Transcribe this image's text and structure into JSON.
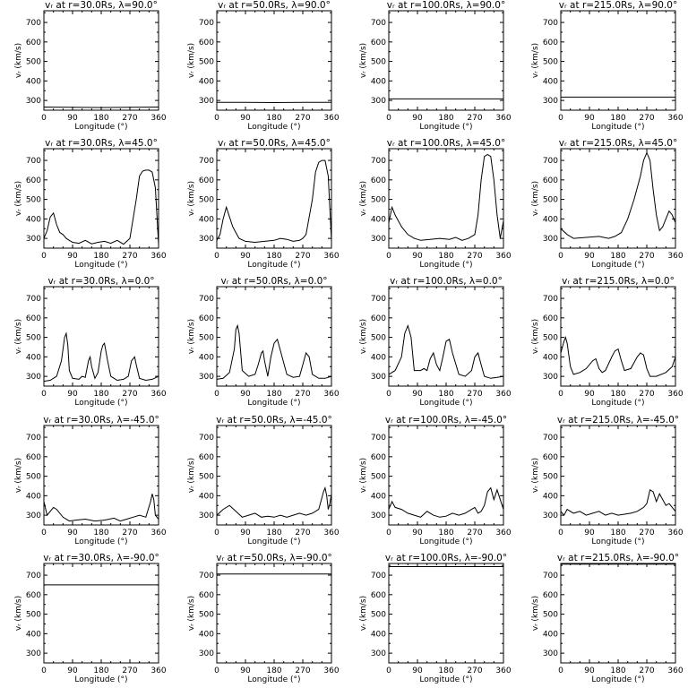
{
  "figure": {
    "xlabel": "Longitude (°)",
    "ylabel": "vᵣ (km/s)",
    "xticks": [
      0,
      90,
      180,
      270,
      360
    ],
    "yticks": [
      300,
      400,
      500,
      600,
      700
    ]
  },
  "chart_data": [
    {
      "type": "line",
      "title": "vᵣ at r=30.0Rs, λ=90.0°",
      "xlabel": "Longitude (°)",
      "ylabel": "vᵣ (km/s)",
      "xlim": [
        0,
        360
      ],
      "ylim": [
        250,
        760
      ],
      "x": [
        0,
        90,
        180,
        270,
        360
      ],
      "y": [
        266,
        265,
        264,
        265,
        266
      ]
    },
    {
      "type": "line",
      "title": "vᵣ at r=50.0Rs, λ=90.0°",
      "xlabel": "Longitude (°)",
      "ylabel": "vᵣ (km/s)",
      "xlim": [
        0,
        360
      ],
      "ylim": [
        250,
        760
      ],
      "x": [
        0,
        90,
        180,
        270,
        360
      ],
      "y": [
        290,
        290,
        289,
        290,
        290
      ]
    },
    {
      "type": "line",
      "title": "vᵣ at r=100.0Rs, λ=90.0°",
      "xlabel": "Longitude (°)",
      "ylabel": "vᵣ (km/s)",
      "xlim": [
        0,
        360
      ],
      "ylim": [
        250,
        760
      ],
      "x": [
        0,
        360
      ],
      "y": [
        308,
        308
      ]
    },
    {
      "type": "line",
      "title": "vᵣ at r=215.0Rs, λ=90.0°",
      "xlabel": "Longitude (°)",
      "ylabel": "vᵣ (km/s)",
      "xlim": [
        0,
        360
      ],
      "ylim": [
        250,
        760
      ],
      "x": [
        0,
        360
      ],
      "y": [
        317,
        317
      ]
    },
    {
      "type": "line",
      "title": "vᵣ at r=30.0Rs, λ=45.0°",
      "xlabel": "Longitude (°)",
      "ylabel": "vᵣ (km/s)",
      "xlim": [
        0,
        360
      ],
      "ylim": [
        250,
        760
      ],
      "x": [
        0,
        10,
        20,
        30,
        40,
        50,
        60,
        70,
        80,
        90,
        110,
        130,
        150,
        170,
        190,
        210,
        230,
        250,
        270,
        290,
        300,
        310,
        320,
        330,
        340,
        350,
        360
      ],
      "y": [
        300,
        340,
        410,
        430,
        370,
        330,
        320,
        300,
        290,
        280,
        275,
        290,
        272,
        280,
        285,
        275,
        290,
        270,
        300,
        500,
        620,
        645,
        650,
        650,
        640,
        560,
        270
      ]
    },
    {
      "type": "line",
      "title": "vᵣ at r=50.0Rs, λ=45.0°",
      "xlabel": "Longitude (°)",
      "ylabel": "vᵣ (km/s)",
      "xlim": [
        0,
        360
      ],
      "ylim": [
        250,
        760
      ],
      "x": [
        0,
        10,
        20,
        30,
        40,
        50,
        60,
        70,
        90,
        120,
        150,
        180,
        200,
        220,
        240,
        260,
        270,
        280,
        300,
        310,
        320,
        330,
        340,
        350,
        360
      ],
      "y": [
        290,
        320,
        400,
        460,
        410,
        360,
        330,
        300,
        285,
        280,
        285,
        290,
        300,
        295,
        285,
        290,
        300,
        320,
        500,
        640,
        690,
        700,
        700,
        620,
        290
      ]
    },
    {
      "type": "line",
      "title": "vᵣ at r=100.0Rs, λ=45.0°",
      "xlabel": "Longitude (°)",
      "ylabel": "vᵣ (km/s)",
      "xlim": [
        0,
        360
      ],
      "ylim": [
        250,
        760
      ],
      "x": [
        0,
        10,
        20,
        40,
        60,
        80,
        100,
        130,
        160,
        190,
        210,
        230,
        250,
        270,
        280,
        290,
        300,
        310,
        320,
        330,
        340,
        350,
        360
      ],
      "y": [
        380,
        460,
        420,
        360,
        320,
        300,
        290,
        295,
        300,
        295,
        305,
        290,
        300,
        320,
        420,
        600,
        720,
        730,
        720,
        600,
        420,
        300,
        390
      ]
    },
    {
      "type": "line",
      "title": "vᵣ at r=215.0Rs, λ=45.0°",
      "xlabel": "Longitude (°)",
      "ylabel": "vᵣ (km/s)",
      "xlim": [
        0,
        360
      ],
      "ylim": [
        250,
        760
      ],
      "x": [
        0,
        20,
        40,
        80,
        120,
        150,
        170,
        190,
        210,
        230,
        250,
        260,
        270,
        280,
        290,
        300,
        310,
        320,
        340,
        350,
        360
      ],
      "y": [
        350,
        320,
        300,
        305,
        310,
        300,
        310,
        330,
        400,
        500,
        620,
        700,
        740,
        700,
        550,
        420,
        340,
        360,
        440,
        420,
        380
      ]
    },
    {
      "type": "line",
      "title": "vᵣ at r=30.0Rs, λ=0.0°",
      "xlabel": "Longitude (°)",
      "ylabel": "vᵣ (km/s)",
      "xlim": [
        0,
        360
      ],
      "ylim": [
        250,
        760
      ],
      "x": [
        0,
        20,
        40,
        55,
        65,
        70,
        75,
        80,
        90,
        110,
        120,
        130,
        140,
        145,
        150,
        160,
        170,
        180,
        185,
        190,
        200,
        210,
        230,
        250,
        265,
        275,
        285,
        290,
        300,
        320,
        340,
        360
      ],
      "y": [
        275,
        280,
        300,
        380,
        500,
        520,
        460,
        330,
        290,
        285,
        300,
        295,
        380,
        400,
        350,
        290,
        320,
        430,
        460,
        470,
        380,
        300,
        280,
        285,
        300,
        380,
        400,
        360,
        290,
        280,
        285,
        300
      ]
    },
    {
      "type": "line",
      "title": "vᵣ at r=50.0Rs, λ=0.0°",
      "xlabel": "Longitude (°)",
      "ylabel": "vᵣ (km/s)",
      "xlim": [
        0,
        360
      ],
      "ylim": [
        250,
        760
      ],
      "x": [
        0,
        20,
        40,
        55,
        60,
        65,
        70,
        80,
        100,
        120,
        130,
        140,
        145,
        150,
        160,
        170,
        180,
        190,
        200,
        220,
        240,
        260,
        270,
        280,
        290,
        300,
        320,
        340,
        360
      ],
      "y": [
        285,
        290,
        320,
        440,
        540,
        560,
        520,
        330,
        300,
        310,
        360,
        420,
        430,
        380,
        300,
        400,
        470,
        490,
        430,
        310,
        295,
        300,
        360,
        420,
        400,
        310,
        290,
        290,
        300
      ]
    },
    {
      "type": "line",
      "title": "vᵣ at r=100.0Rs, λ=0.0°",
      "xlabel": "Longitude (°)",
      "ylabel": "vᵣ (km/s)",
      "xlim": [
        0,
        360
      ],
      "ylim": [
        250,
        760
      ],
      "x": [
        0,
        20,
        40,
        50,
        60,
        70,
        80,
        100,
        110,
        120,
        130,
        140,
        150,
        160,
        170,
        180,
        190,
        200,
        220,
        240,
        260,
        270,
        280,
        290,
        300,
        320,
        340,
        360
      ],
      "y": [
        310,
        330,
        400,
        520,
        560,
        500,
        330,
        330,
        340,
        330,
        390,
        420,
        360,
        330,
        400,
        480,
        490,
        420,
        310,
        300,
        330,
        400,
        420,
        360,
        300,
        290,
        295,
        300
      ]
    },
    {
      "type": "line",
      "title": "vᵣ at r=215.0Rs, λ=0.0°",
      "xlabel": "Longitude (°)",
      "ylabel": "vᵣ (km/s)",
      "xlim": [
        0,
        360
      ],
      "ylim": [
        250,
        760
      ],
      "x": [
        0,
        10,
        15,
        20,
        30,
        40,
        60,
        80,
        100,
        110,
        120,
        130,
        140,
        160,
        170,
        180,
        190,
        200,
        220,
        240,
        250,
        260,
        270,
        280,
        300,
        330,
        350,
        360
      ],
      "y": [
        420,
        480,
        500,
        470,
        350,
        310,
        320,
        340,
        380,
        390,
        340,
        320,
        330,
        400,
        430,
        440,
        380,
        330,
        340,
        400,
        420,
        410,
        340,
        300,
        300,
        320,
        350,
        400
      ]
    },
    {
      "type": "line",
      "title": "vᵣ at r=30.0Rs, λ=-45.0°",
      "xlabel": "Longitude (°)",
      "ylabel": "vᵣ (km/s)",
      "xlim": [
        0,
        360
      ],
      "ylim": [
        250,
        760
      ],
      "x": [
        0,
        10,
        20,
        30,
        40,
        60,
        80,
        100,
        130,
        160,
        190,
        220,
        240,
        260,
        280,
        300,
        320,
        335,
        340,
        345,
        350,
        360
      ],
      "y": [
        370,
        300,
        320,
        340,
        330,
        290,
        270,
        275,
        280,
        270,
        275,
        285,
        270,
        280,
        290,
        300,
        290,
        370,
        410,
        380,
        300,
        280
      ]
    },
    {
      "type": "line",
      "title": "vᵣ at r=50.0Rs, λ=-45.0°",
      "xlabel": "Longitude (°)",
      "ylabel": "vᵣ (km/s)",
      "xlim": [
        0,
        360
      ],
      "ylim": [
        250,
        760
      ],
      "x": [
        0,
        20,
        40,
        60,
        80,
        100,
        120,
        140,
        160,
        180,
        200,
        220,
        240,
        260,
        280,
        300,
        320,
        335,
        340,
        345,
        350,
        355,
        360
      ],
      "y": [
        300,
        330,
        350,
        320,
        290,
        300,
        310,
        290,
        295,
        290,
        300,
        290,
        300,
        310,
        300,
        310,
        330,
        420,
        440,
        400,
        330,
        360,
        410
      ]
    },
    {
      "type": "line",
      "title": "vᵣ at r=100.0Rs, λ=-45.0°",
      "xlabel": "Longitude (°)",
      "ylabel": "vᵣ (km/s)",
      "xlim": [
        0,
        360
      ],
      "ylim": [
        250,
        760
      ],
      "x": [
        0,
        10,
        20,
        40,
        60,
        80,
        100,
        120,
        140,
        160,
        180,
        200,
        220,
        240,
        260,
        270,
        280,
        290,
        300,
        310,
        320,
        330,
        340,
        350,
        360
      ],
      "y": [
        330,
        370,
        340,
        330,
        310,
        300,
        290,
        320,
        300,
        290,
        295,
        310,
        300,
        310,
        330,
        340,
        310,
        320,
        350,
        420,
        440,
        380,
        430,
        380,
        330
      ]
    },
    {
      "type": "line",
      "title": "vᵣ at r=215.0Rs, λ=-45.0°",
      "xlabel": "Longitude (°)",
      "ylabel": "vᵣ (km/s)",
      "xlim": [
        0,
        360
      ],
      "ylim": [
        250,
        760
      ],
      "x": [
        0,
        10,
        20,
        40,
        60,
        80,
        100,
        120,
        140,
        160,
        180,
        200,
        220,
        240,
        260,
        270,
        280,
        290,
        300,
        310,
        320,
        330,
        340,
        350,
        360
      ],
      "y": [
        320,
        300,
        330,
        310,
        320,
        300,
        310,
        320,
        300,
        310,
        300,
        305,
        310,
        320,
        340,
        360,
        430,
        420,
        370,
        410,
        380,
        350,
        360,
        340,
        320
      ]
    },
    {
      "type": "line",
      "title": "vᵣ at r=30.0Rs, λ=-90.0°",
      "xlabel": "Longitude (°)",
      "ylabel": "vᵣ (km/s)",
      "xlim": [
        0,
        360
      ],
      "ylim": [
        250,
        760
      ],
      "x": [
        0,
        360
      ],
      "y": [
        650,
        650
      ]
    },
    {
      "type": "line",
      "title": "vᵣ at r=50.0Rs, λ=-90.0°",
      "xlabel": "Longitude (°)",
      "ylabel": "vᵣ (km/s)",
      "xlim": [
        0,
        360
      ],
      "ylim": [
        250,
        760
      ],
      "x": [
        0,
        360
      ],
      "y": [
        706,
        706
      ]
    },
    {
      "type": "line",
      "title": "vᵣ at r=100.0Rs, λ=-90.0°",
      "xlabel": "Longitude (°)",
      "ylabel": "vᵣ (km/s)",
      "xlim": [
        0,
        360
      ],
      "ylim": [
        250,
        760
      ],
      "x": [
        0,
        360
      ],
      "y": [
        744,
        744
      ]
    },
    {
      "type": "line",
      "title": "vᵣ at r=215.0Rs, λ=-90.0°",
      "xlabel": "Longitude (°)",
      "ylabel": "vᵣ (km/s)",
      "xlim": [
        0,
        360
      ],
      "ylim": [
        250,
        760
      ],
      "x": [
        0,
        360
      ],
      "y": [
        757,
        757
      ]
    }
  ]
}
